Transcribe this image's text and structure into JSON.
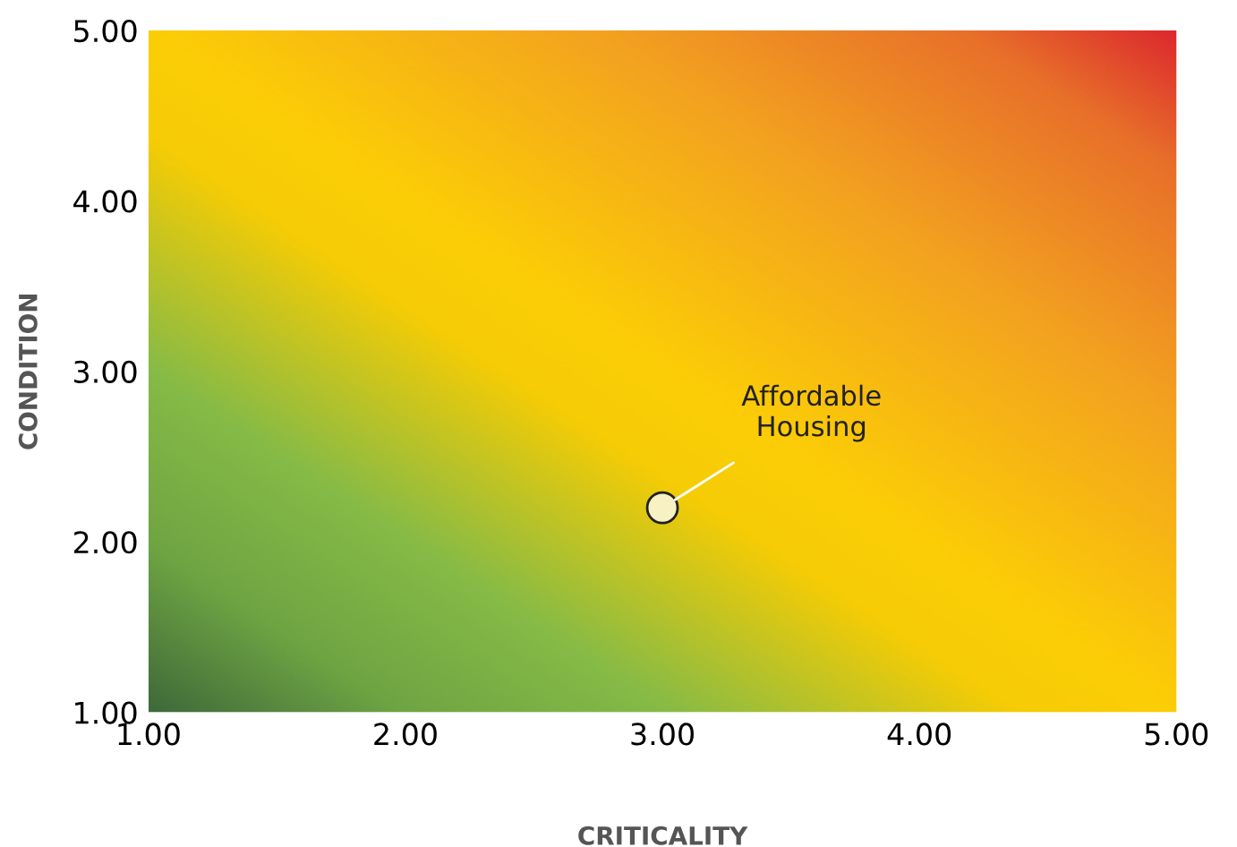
{
  "chart_data": {
    "type": "scatter",
    "xlabel": "CRITICALITY",
    "ylabel": "CONDITION",
    "x": [
      3.0
    ],
    "series": [
      {
        "color": "#f7f1c4",
        "values": [
          2.2
        ]
      }
    ],
    "annotations": [
      {
        "text": "Affordable\nHousing",
        "x": 3.0,
        "y": 2.2
      }
    ],
    "xlim": [
      1,
      5
    ],
    "ylim": [
      1,
      5
    ],
    "xticks": [
      {
        "value": 1,
        "label": "1.00"
      },
      {
        "value": 2,
        "label": "2.00"
      },
      {
        "value": 3,
        "label": "3.00"
      },
      {
        "value": 4,
        "label": "4.00"
      },
      {
        "value": 5,
        "label": "5.00"
      }
    ],
    "yticks": [
      {
        "value": 1,
        "label": "1.00"
      },
      {
        "value": 2,
        "label": "2.00"
      },
      {
        "value": 3,
        "label": "3.00"
      },
      {
        "value": 4,
        "label": "4.00"
      },
      {
        "value": 5,
        "label": "5.00"
      }
    ],
    "grid": false,
    "legend": false,
    "marker": "circle"
  }
}
